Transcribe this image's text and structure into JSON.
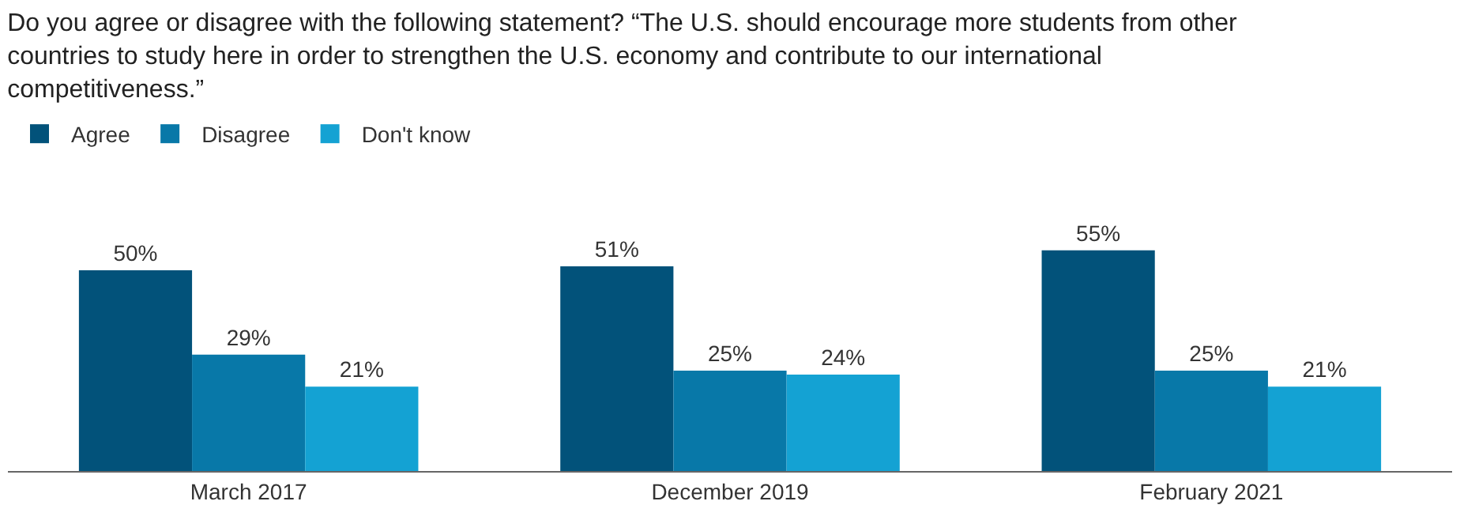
{
  "chart_data": {
    "type": "bar",
    "title": "Do you agree or disagree with the following statement? “The U.S. should encourage more students from other countries to study here in order to strengthen the U.S. economy and contribute to our international competitiveness.”",
    "categories": [
      "March 2017",
      "December 2019",
      "February 2021"
    ],
    "series": [
      {
        "name": "Agree",
        "color": "#02527a",
        "values": [
          50,
          51,
          55
        ],
        "value_labels": [
          "50%",
          "51%",
          "55%"
        ]
      },
      {
        "name": "Disagree",
        "color": "#0878a8",
        "values": [
          29,
          25,
          25
        ],
        "value_labels": [
          "29%",
          "25%",
          "25%"
        ]
      },
      {
        "name": "Don't know",
        "color": "#14a2d3",
        "values": [
          21,
          24,
          21
        ],
        "value_labels": [
          "21%",
          "24%",
          "21%"
        ]
      }
    ],
    "legend": "top left",
    "grid": false
  }
}
